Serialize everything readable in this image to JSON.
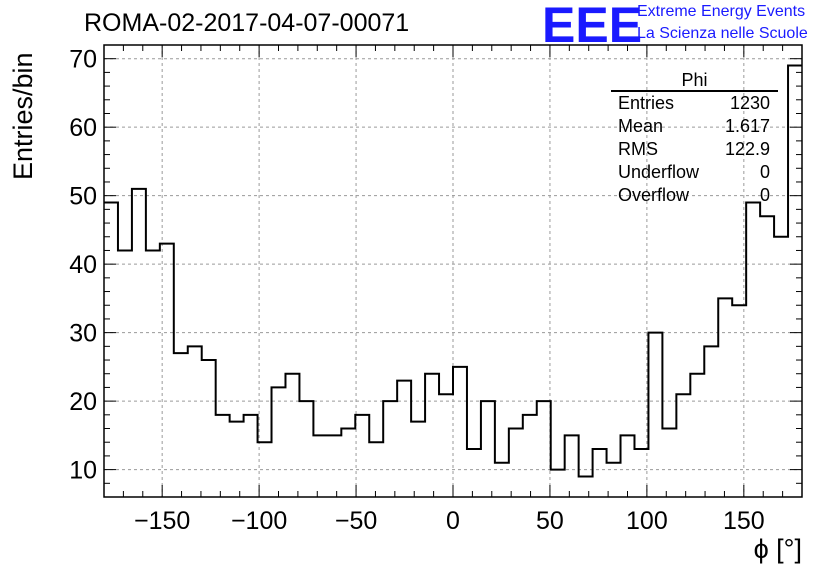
{
  "header": {
    "run_title": "ROMA-02-2017-04-07-00071",
    "logo_text": "EEE",
    "logo_line1": "Extreme Energy Events",
    "logo_line2": "La Scienza nelle Scuole"
  },
  "stats_box": {
    "title": "Phi",
    "rows": [
      {
        "label": "Entries",
        "value": "1230"
      },
      {
        "label": "Mean",
        "value": "1.617"
      },
      {
        "label": "RMS",
        "value": "122.9"
      },
      {
        "label": "Underflow",
        "value": "0"
      },
      {
        "label": "Overflow",
        "value": "0"
      }
    ]
  },
  "chart_data": {
    "type": "histogram",
    "title": "ROMA-02-2017-04-07-00071",
    "xlabel": "ϕ [°]",
    "ylabel": "Entries/bin",
    "xlim": [
      -180,
      180
    ],
    "ylim": [
      6,
      72
    ],
    "x_ticks": [
      -150,
      -100,
      -50,
      0,
      50,
      100,
      150
    ],
    "x_tick_labels": [
      "−150",
      "−100",
      "−50",
      "0",
      "50",
      "100",
      "150"
    ],
    "y_ticks": [
      10,
      20,
      30,
      40,
      50,
      60,
      70
    ],
    "y_tick_labels": [
      "10",
      "20",
      "30",
      "40",
      "50",
      "60",
      "70"
    ],
    "grid": true,
    "bin_width": 7.2,
    "bins_start": -180,
    "values": [
      49,
      42,
      51,
      42,
      43,
      27,
      28,
      26,
      18,
      17,
      18,
      14,
      22,
      24,
      20,
      15,
      15,
      16,
      18,
      14,
      20,
      23,
      17,
      24,
      21,
      25,
      13,
      20,
      11,
      16,
      18,
      20,
      10,
      15,
      9,
      13,
      11,
      15,
      13,
      30,
      16,
      21,
      24,
      28,
      35,
      34,
      49,
      47,
      44,
      69
    ],
    "line_color": "#000000"
  }
}
